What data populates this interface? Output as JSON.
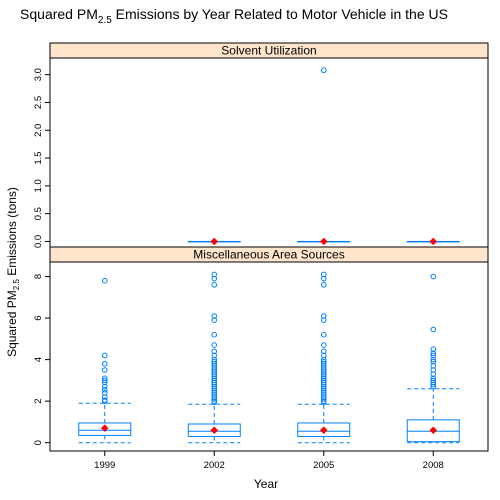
{
  "chart_data": {
    "type": "box",
    "title": {
      "prefix": "Squared PM",
      "subscript": "2.5",
      "suffix": " Emissions by Year Related to Motor Vehicle in the US"
    },
    "xlabel": "Year",
    "ylabel": {
      "prefix": "Squared PM",
      "subscript": "2.5",
      "suffix": " Emissions (tons)"
    },
    "categories": [
      "1999",
      "2002",
      "2005",
      "2008"
    ],
    "colors": {
      "box": "#0080ff",
      "mean_marker": "#ff0000",
      "strip_fill": "#ffe5cc",
      "frame": "#000000"
    },
    "grid": false,
    "panels": [
      {
        "strip_label": "Solvent Utilization",
        "ylim": [
          -0.1,
          3.3
        ],
        "yticks": [
          "0.0",
          "0.5",
          "1.0",
          "1.5",
          "2.0",
          "2.5",
          "3.0"
        ],
        "ytick_values": [
          0.0,
          0.5,
          1.0,
          1.5,
          2.0,
          2.5,
          3.0
        ],
        "boxes": [
          null,
          {
            "category": "2002",
            "whisker_low": 0.0,
            "q1": 0.0,
            "median": 0.0,
            "q3": 0.0,
            "whisker_high": 0.0,
            "mean": 0.0,
            "outliers": []
          },
          {
            "category": "2005",
            "whisker_low": 0.0,
            "q1": 0.0,
            "median": 0.0,
            "q3": 0.0,
            "whisker_high": 0.0,
            "mean": 0.0,
            "outliers": [
              3.08
            ]
          },
          {
            "category": "2008",
            "whisker_low": 0.0,
            "q1": 0.0,
            "median": 0.0,
            "q3": 0.0,
            "whisker_high": 0.0,
            "mean": 0.0,
            "outliers": []
          }
        ]
      },
      {
        "strip_label": "Miscellaneous Area Sources",
        "ylim": [
          -0.4,
          8.7
        ],
        "yticks": [
          "0",
          "2",
          "4",
          "6",
          "8"
        ],
        "ytick_values": [
          0,
          2,
          4,
          6,
          8
        ],
        "boxes": [
          {
            "category": "1999",
            "whisker_low": 0.0,
            "q1": 0.35,
            "median": 0.6,
            "q3": 0.95,
            "whisker_high": 1.9,
            "mean": 0.7,
            "outliers": [
              2.0,
              2.05,
              2.2,
              2.4,
              2.55,
              2.7,
              2.9,
              3.0,
              3.1,
              3.5,
              3.8,
              4.2,
              7.8
            ]
          },
          {
            "category": "2002",
            "whisker_low": 0.0,
            "q1": 0.3,
            "median": 0.55,
            "q3": 0.9,
            "whisker_high": 1.85,
            "mean": 0.6,
            "outliers": [
              1.95,
              2.0,
              2.1,
              2.2,
              2.3,
              2.4,
              2.5,
              2.6,
              2.7,
              2.8,
              2.9,
              3.0,
              3.1,
              3.2,
              3.3,
              3.4,
              3.5,
              3.6,
              3.7,
              3.8,
              3.9,
              4.0,
              4.2,
              4.4,
              4.7,
              5.2,
              5.9,
              6.1,
              7.6,
              7.9,
              8.1
            ]
          },
          {
            "category": "2005",
            "whisker_low": 0.0,
            "q1": 0.3,
            "median": 0.55,
            "q3": 0.95,
            "whisker_high": 1.85,
            "mean": 0.6,
            "outliers": [
              1.95,
              2.0,
              2.1,
              2.2,
              2.3,
              2.4,
              2.5,
              2.6,
              2.7,
              2.8,
              2.9,
              3.0,
              3.1,
              3.2,
              3.3,
              3.4,
              3.5,
              3.6,
              3.7,
              3.8,
              3.9,
              4.0,
              4.2,
              4.4,
              4.7,
              5.2,
              5.9,
              6.1,
              7.6,
              7.9,
              8.1
            ]
          },
          {
            "category": "2008",
            "whisker_low": 0.0,
            "q1": 0.05,
            "median": 0.55,
            "q3": 1.1,
            "whisker_high": 2.6,
            "mean": 0.6,
            "outliers": [
              2.7,
              2.8,
              2.9,
              3.0,
              3.1,
              3.3,
              3.5,
              3.7,
              3.9,
              4.0,
              4.2,
              4.3,
              4.5,
              5.45,
              8.0
            ]
          }
        ]
      }
    ]
  }
}
